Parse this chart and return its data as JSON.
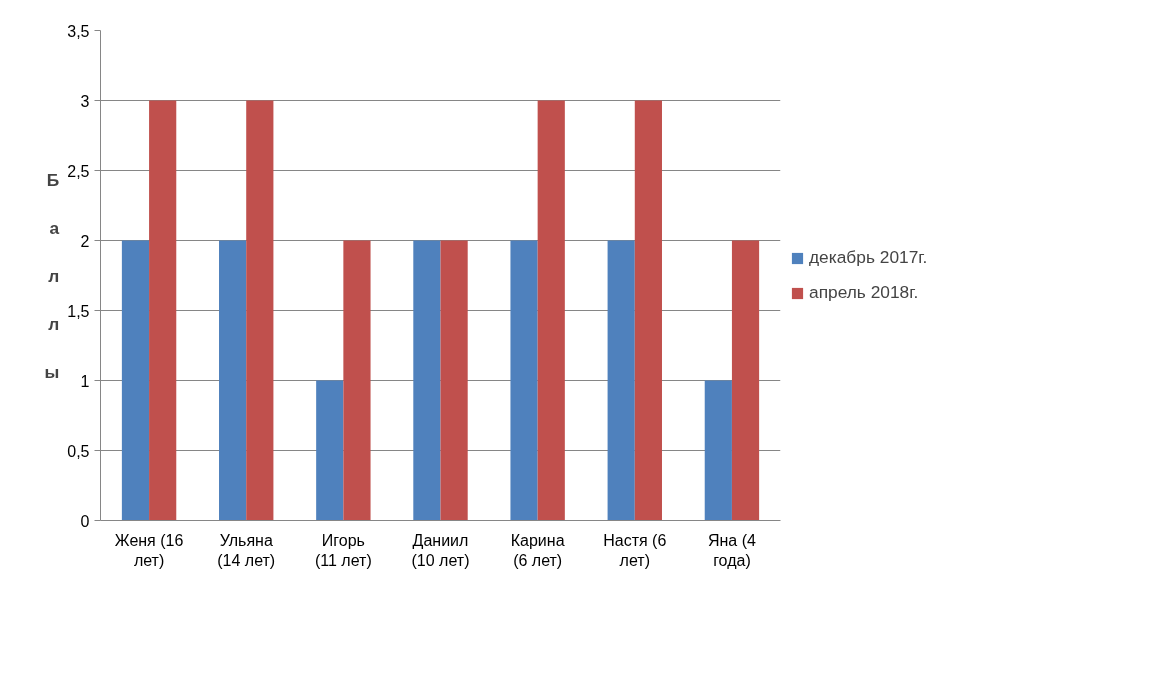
{
  "chart_data": {
    "type": "bar",
    "ylabel": "Баллы",
    "categories": [
      "Женя (16 лет)",
      "Ульяна (14 лет)",
      "Игорь (11 лет)",
      "Даниил (10 лет)",
      "Карина (6 лет)",
      "Настя (6 лет)",
      "Яна (4 года)"
    ],
    "series": [
      {
        "name": "декабрь 2017г.",
        "color": "#4f81bd",
        "values": [
          2,
          2,
          1,
          2,
          2,
          2,
          1
        ]
      },
      {
        "name": "апрель 2018г.",
        "color": "#c0504d",
        "values": [
          3,
          3,
          2,
          2,
          3,
          3,
          2
        ]
      }
    ],
    "ylim": [
      0,
      3.5
    ],
    "yticks": [
      0,
      {
        "value": 0.5,
        "label": "0,5"
      },
      1,
      {
        "value": 1.5,
        "label": "1,5"
      },
      2,
      {
        "value": 2.5,
        "label": "2,5"
      },
      3,
      {
        "value": 3.5,
        "label": "3,5"
      }
    ],
    "grid": "y",
    "legend": "right"
  }
}
